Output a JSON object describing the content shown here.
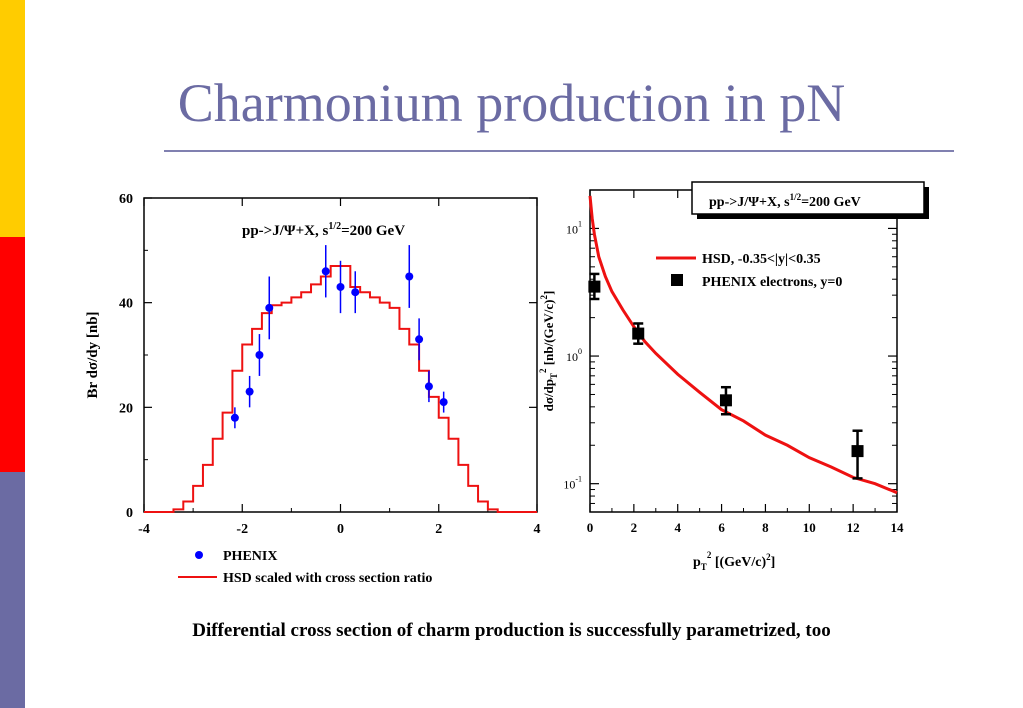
{
  "slide": {
    "title": "Charmonium production in pN",
    "caption": "Differential cross section of charm production is successfully parametrized, too",
    "side_colors": [
      "#ffcc00",
      "#ff0000",
      "#6b6ba3"
    ]
  },
  "chart_data": [
    {
      "type": "line",
      "ylabel": "Br dσ/dy [nb]",
      "xlabel": "",
      "annotation": {
        "text": "pp->J/Ψ+X,  s",
        "sup": "1/2",
        "tail": "=200 GeV"
      },
      "xlim": [
        -4,
        4
      ],
      "ylim": [
        0,
        60
      ],
      "x_ticks": [
        "-4",
        "-2",
        "0",
        "2",
        "4"
      ],
      "y_ticks": [
        "0",
        "20",
        "40",
        "60"
      ],
      "series": [
        {
          "name": "PHENIX",
          "kind": "points",
          "color": "#0000ff",
          "x": [
            -2.15,
            -1.85,
            -1.65,
            -1.45,
            -0.3,
            0,
            0.3,
            1.4,
            1.6,
            1.8,
            2.1
          ],
          "y": [
            18,
            23,
            30,
            39,
            46,
            43,
            42,
            45,
            33,
            24,
            21
          ],
          "err": [
            2,
            3,
            4,
            6,
            5,
            5,
            4,
            6,
            4,
            3,
            2
          ]
        },
        {
          "name": "HSD scaled with cross section ratio",
          "kind": "step",
          "color": "#ee1111",
          "edges": [
            -4,
            -3.8,
            -3.6,
            -3.4,
            -3.2,
            -3,
            -2.8,
            -2.6,
            -2.4,
            -2.2,
            -2,
            -1.8,
            -1.6,
            -1.4,
            -1.2,
            -1,
            -0.8,
            -0.6,
            -0.4,
            -0.2,
            0,
            0.2,
            0.4,
            0.6,
            0.8,
            1,
            1.2,
            1.4,
            1.6,
            1.8,
            2,
            2.2,
            2.4,
            2.6,
            2.8,
            3,
            3.2,
            3.4,
            3.6,
            3.8,
            4
          ],
          "values": [
            0,
            0,
            0,
            0.5,
            2,
            5,
            9,
            14,
            19,
            27,
            32,
            35,
            38,
            39.5,
            40,
            41,
            42,
            43.5,
            45,
            47,
            47,
            43,
            42,
            41,
            40,
            39,
            35,
            32,
            27,
            22,
            18,
            14,
            9,
            5,
            2,
            0.5,
            0,
            0,
            0,
            0
          ]
        }
      ]
    },
    {
      "type": "line",
      "xlabel": "p",
      "xlabel_sub": "T",
      "xlabel_sup": "2",
      "xlabel_tail": " [(GeV/c)",
      "xlabel_tail_sup": "2",
      "xlabel_end": "]",
      "ylabel": "dσ/dp",
      "ylabel_sub": "T",
      "ylabel_sup": "2",
      "ylabel_tail": " [nb/(GeV/c)",
      "ylabel_tail_sup": "2",
      "ylabel_end": "]",
      "scale_y": "log",
      "xlim": [
        0,
        14
      ],
      "ylim": [
        0.06,
        20
      ],
      "x_ticks": [
        "0",
        "2",
        "4",
        "6",
        "8",
        "10",
        "12",
        "14"
      ],
      "y_ticks": [
        {
          "base": "10",
          "exp": "1"
        },
        {
          "base": "10",
          "exp": "0"
        },
        {
          "base": "10",
          "exp": "-1"
        }
      ],
      "annotation": {
        "text": "pp->J/Ψ+X,  s",
        "sup": "1/2",
        "tail": "=200 GeV"
      },
      "series": [
        {
          "name": "HSD, -0.35<|y|<0.35",
          "kind": "line",
          "color": "#ee1111",
          "x": [
            0.0,
            0.1,
            0.2,
            0.4,
            0.7,
            1.0,
            1.5,
            2.0,
            2.5,
            3.0,
            4.0,
            5.0,
            6.0,
            7.0,
            8.0,
            9.0,
            10.0,
            11.0,
            12.0,
            13.0,
            14.0
          ],
          "y": [
            18,
            12,
            9,
            6,
            4.2,
            3.2,
            2.3,
            1.7,
            1.3,
            1.05,
            0.72,
            0.52,
            0.38,
            0.31,
            0.24,
            0.2,
            0.16,
            0.135,
            0.112,
            0.1,
            0.085
          ]
        },
        {
          "name": "PHENIX electrons, y=0",
          "kind": "points",
          "color": "#000000",
          "x": [
            0.2,
            2.2,
            6.2,
            12.2
          ],
          "y": [
            3.5,
            1.5,
            0.45,
            0.18
          ],
          "err_lo": [
            0.7,
            0.25,
            0.1,
            0.07
          ],
          "err_hi": [
            0.9,
            0.3,
            0.12,
            0.08
          ]
        }
      ]
    }
  ]
}
